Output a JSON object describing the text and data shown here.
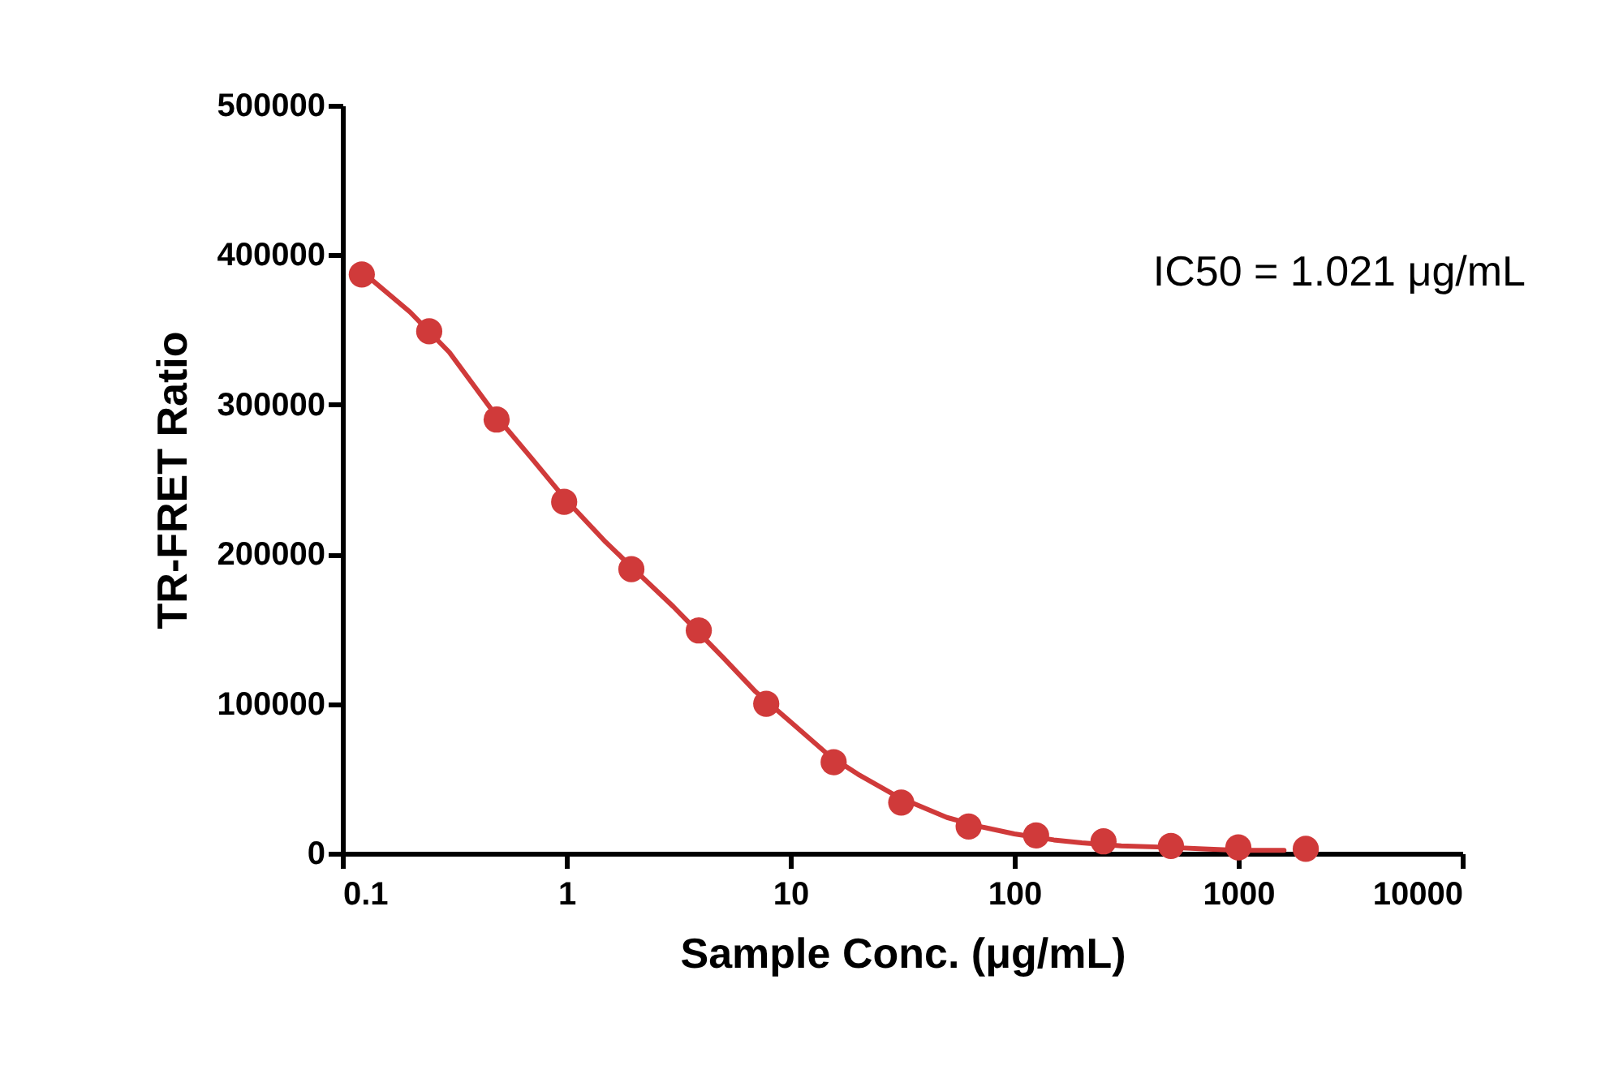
{
  "chart_data": {
    "type": "scatter",
    "xlabel": "Sample Conc. (μg/mL)",
    "ylabel": "TR-FRET Ratio",
    "annotations": [
      "IC50 = 1.021 μg/mL"
    ],
    "log": "x",
    "grid": false,
    "marker": "circle",
    "xlim": [
      0.1,
      10000
    ],
    "xticks": [
      0.1,
      1,
      10,
      100,
      1000,
      10000
    ],
    "ylim": [
      0,
      500000
    ],
    "yticks": [
      0,
      100000,
      200000,
      300000,
      400000,
      500000
    ],
    "series": [
      {
        "type": "line",
        "color": "#d03a3a",
        "line_style": "solid",
        "marker": "none",
        "x": [
          0.12,
          0.2,
          0.3,
          0.5,
          0.7,
          1,
          1.5,
          2,
          3,
          5,
          7,
          10,
          15,
          20,
          30,
          50,
          70,
          100,
          150,
          200,
          300,
          500,
          700,
          1000,
          1600
        ],
        "values": [
          390000,
          362000,
          335000,
          290000,
          264000,
          236000,
          208000,
          190000,
          165000,
          131000,
          108000,
          88000,
          65000,
          53000,
          38000,
          24000,
          18000,
          13000,
          9000,
          7000,
          5000,
          4000,
          3000,
          2000,
          2000
        ]
      },
      {
        "color": "#d03a3a",
        "x": [
          0.122,
          0.244,
          0.488,
          0.977,
          1.95,
          3.9,
          7.8,
          15.6,
          31.25,
          62.5,
          125,
          250,
          500,
          1000,
          2000
        ],
        "values": [
          387000,
          349000,
          290000,
          235000,
          190000,
          149000,
          100000,
          61000,
          34000,
          18000,
          12000,
          8000,
          5000,
          4000,
          3000
        ]
      }
    ]
  }
}
